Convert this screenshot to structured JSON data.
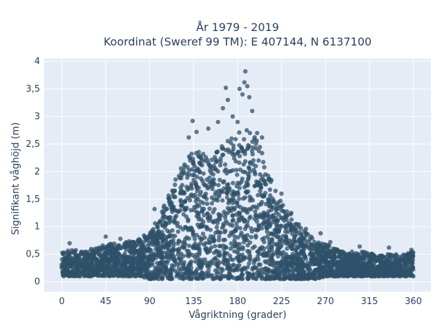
{
  "chart_data": {
    "type": "scatter",
    "title": "År 1979 - 2019",
    "subtitle": "Koordinat (Sweref 99 TM): E 407144, N 6137100",
    "xlabel": "Vågriktning (grader)",
    "ylabel": "Signifikant våghöjd (m)",
    "xlim": [
      -18,
      378
    ],
    "ylim": [
      -0.18,
      4.05
    ],
    "xticks": [
      0,
      45,
      90,
      135,
      180,
      225,
      270,
      315,
      360
    ],
    "xtick_labels": [
      "0",
      "45",
      "90",
      "135",
      "180",
      "225",
      "270",
      "315",
      "360"
    ],
    "yticks": [
      0,
      0.5,
      1,
      1.5,
      2,
      2.5,
      3,
      3.5,
      4
    ],
    "ytick_labels": [
      "0",
      "0,5",
      "1",
      "1,5",
      "2",
      "2,5",
      "3",
      "3,5",
      "4"
    ],
    "grid": true,
    "marker_color": "#2f5068",
    "background_color": "#e5ecf6",
    "envelope": {
      "direction": [
        0,
        10,
        20,
        30,
        40,
        50,
        60,
        70,
        80,
        90,
        100,
        110,
        120,
        130,
        140,
        150,
        160,
        170,
        180,
        190,
        200,
        210,
        220,
        230,
        240,
        250,
        260,
        270,
        280,
        290,
        300,
        310,
        320,
        330,
        340,
        350,
        360
      ],
      "hs_max": [
        0.55,
        0.6,
        0.55,
        0.6,
        0.65,
        0.7,
        0.7,
        0.75,
        0.8,
        0.9,
        1.2,
        1.6,
        2.0,
        2.3,
        2.4,
        2.3,
        2.4,
        2.6,
        2.7,
        2.8,
        2.6,
        2.1,
        1.6,
        1.35,
        1.1,
        0.9,
        0.75,
        0.7,
        0.6,
        0.55,
        0.55,
        0.55,
        0.5,
        0.5,
        0.5,
        0.5,
        0.55
      ],
      "hs_min": [
        0.1,
        0.1,
        0.1,
        0.1,
        0.1,
        0.1,
        0.1,
        0.1,
        0.1,
        0.05,
        0.05,
        0.05,
        0.05,
        0.05,
        0.05,
        0.05,
        0.05,
        0.05,
        0.05,
        0.05,
        0.05,
        0.05,
        0.05,
        0.05,
        0.05,
        0.05,
        0.05,
        0.1,
        0.1,
        0.1,
        0.1,
        0.1,
        0.1,
        0.1,
        0.1,
        0.1,
        0.1
      ]
    },
    "outliers": [
      {
        "x": 8,
        "y": 0.7
      },
      {
        "x": 45,
        "y": 0.82
      },
      {
        "x": 60,
        "y": 0.78
      },
      {
        "x": 95,
        "y": 1.32
      },
      {
        "x": 110,
        "y": 1.45
      },
      {
        "x": 120,
        "y": 1.92
      },
      {
        "x": 130,
        "y": 2.62
      },
      {
        "x": 134,
        "y": 2.92
      },
      {
        "x": 138,
        "y": 2.72
      },
      {
        "x": 150,
        "y": 2.78
      },
      {
        "x": 160,
        "y": 2.9
      },
      {
        "x": 165,
        "y": 3.15
      },
      {
        "x": 168,
        "y": 3.52
      },
      {
        "x": 170,
        "y": 3.3
      },
      {
        "x": 175,
        "y": 3.0
      },
      {
        "x": 180,
        "y": 2.9
      },
      {
        "x": 182,
        "y": 3.5
      },
      {
        "x": 185,
        "y": 3.4
      },
      {
        "x": 187,
        "y": 3.62
      },
      {
        "x": 188,
        "y": 3.82
      },
      {
        "x": 190,
        "y": 3.55
      },
      {
        "x": 192,
        "y": 3.35
      },
      {
        "x": 195,
        "y": 3.1
      },
      {
        "x": 200,
        "y": 2.7
      },
      {
        "x": 205,
        "y": 2.62
      },
      {
        "x": 225,
        "y": 1.6
      },
      {
        "x": 235,
        "y": 1.25
      },
      {
        "x": 250,
        "y": 0.96
      },
      {
        "x": 265,
        "y": 0.88
      },
      {
        "x": 275,
        "y": 0.72
      },
      {
        "x": 305,
        "y": 0.64
      },
      {
        "x": 335,
        "y": 0.62
      },
      {
        "x": 358,
        "y": 0.58
      }
    ]
  }
}
